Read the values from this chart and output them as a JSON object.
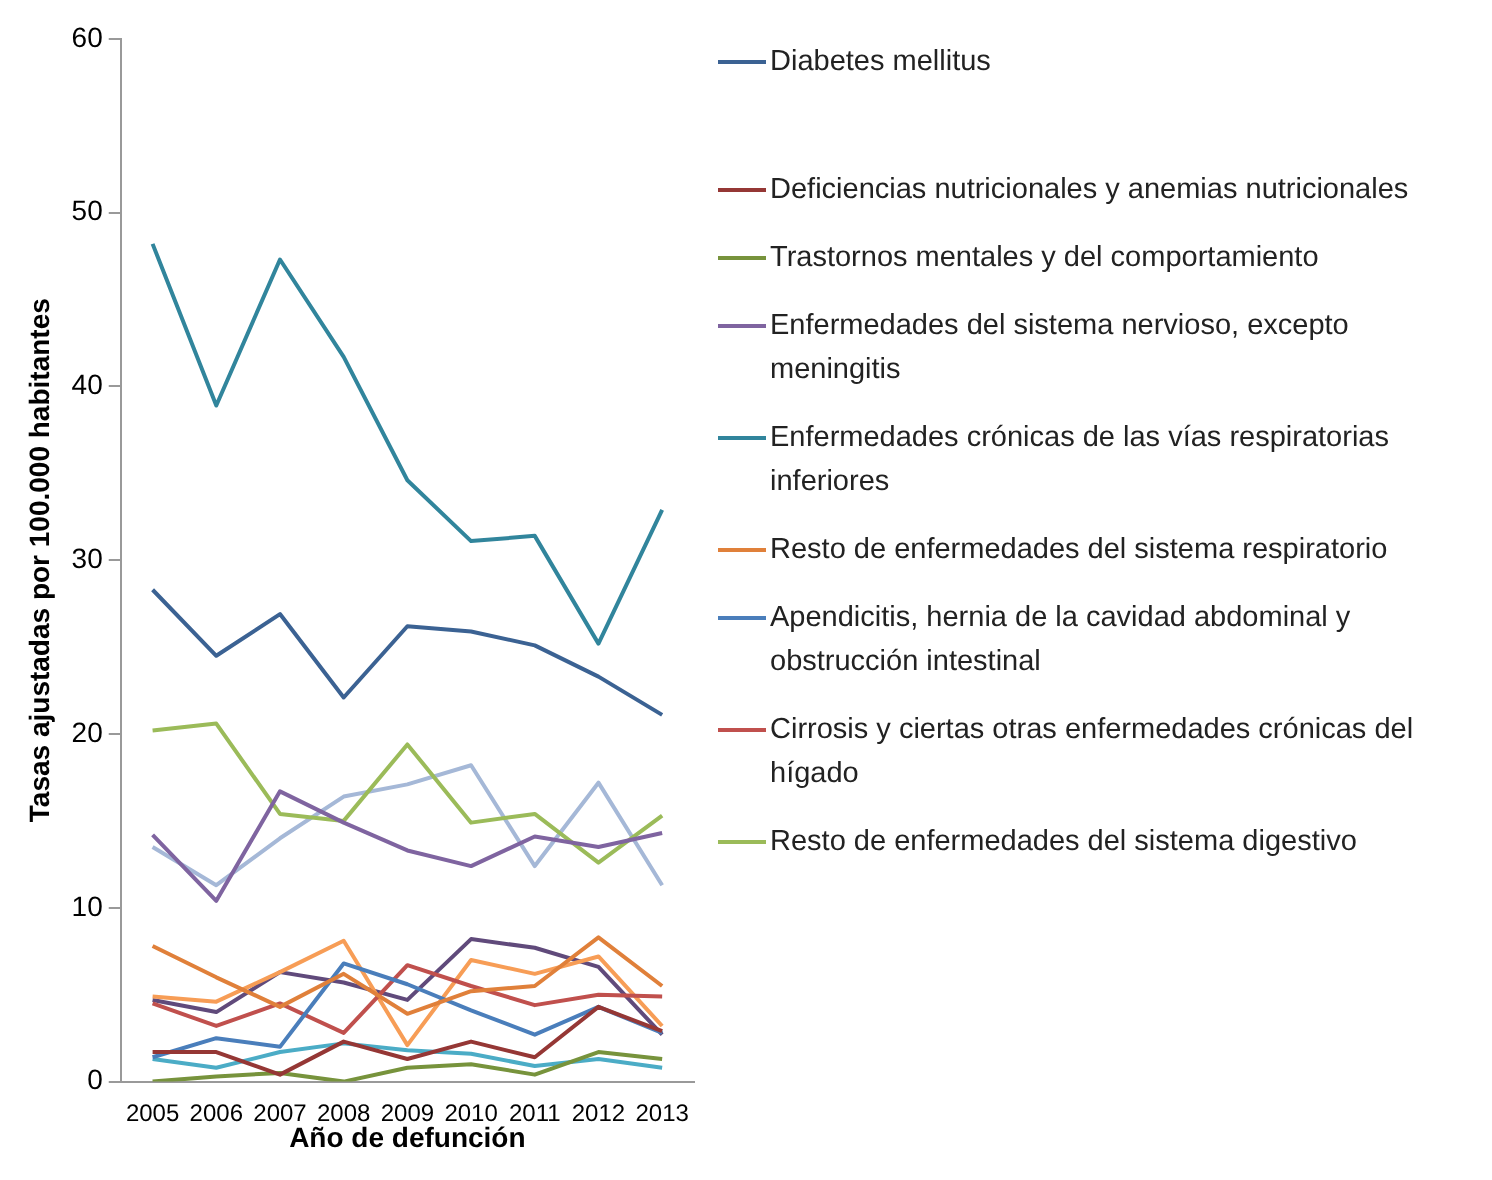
{
  "chart_data": {
    "type": "line",
    "xlabel": "Año de defunción",
    "ylabel": "Tasas ajustadas por 100.000 habitantes",
    "categories": [
      "2005",
      "2006",
      "2007",
      "2008",
      "2009",
      "2010",
      "2011",
      "2012",
      "2013"
    ],
    "ylim": [
      0,
      60
    ],
    "yticks": [
      0,
      10,
      20,
      30,
      40,
      50,
      60
    ],
    "grid": false,
    "legend": "right",
    "marker": "none",
    "series": [
      {
        "name": "Diabetes mellitus",
        "color": "#3b6293",
        "values": [
          28.3,
          24.5,
          26.9,
          22.1,
          26.2,
          25.9,
          25.1,
          23.3,
          21.1
        ]
      },
      {
        "name": "Deficiencias nutricionales y anemias nutricionales",
        "color": "#953735",
        "values": [
          1.7,
          1.7,
          0.4,
          2.3,
          1.3,
          2.3,
          1.4,
          4.3,
          2.9
        ]
      },
      {
        "name": "Trastornos mentales y del comportamiento",
        "color": "#77933c",
        "values": [
          0.0,
          0.3,
          0.5,
          0.0,
          0.8,
          1.0,
          0.4,
          1.7,
          1.3
        ]
      },
      {
        "name": "Enfermedades del sistema nervioso, excepto meningitis",
        "color": "#7f64a0",
        "values": [
          14.2,
          10.4,
          16.7,
          14.9,
          13.3,
          12.4,
          14.1,
          13.5,
          14.3
        ]
      },
      {
        "name": "Enfermedades crónicas de las vías respiratorias inferiores",
        "color": "#31859c",
        "values": [
          48.2,
          38.9,
          47.3,
          41.7,
          34.6,
          31.1,
          31.4,
          25.2,
          32.9
        ]
      },
      {
        "name": "Resto de enfermedades del sistema respiratorio",
        "color": "#e0803a",
        "values": [
          7.8,
          6.0,
          4.3,
          6.2,
          3.9,
          5.2,
          5.5,
          8.3,
          5.5
        ]
      },
      {
        "name": "Apendicitis, hernia de la cavidad abdominal y obstrucción intestinal",
        "color": "#4a7ebb",
        "values": [
          1.4,
          2.5,
          2.0,
          6.8,
          5.6,
          4.1,
          2.7,
          4.3,
          2.8
        ]
      },
      {
        "name": "Cirrosis y ciertas otras enfermedades crónicas del hígado",
        "color": "#c0504d",
        "values": [
          4.5,
          3.2,
          4.5,
          2.8,
          6.7,
          5.5,
          4.4,
          5.0,
          4.9
        ]
      },
      {
        "name": "Resto de enfermedades del sistema digestivo",
        "color": "#9bbb59",
        "values": [
          20.2,
          20.6,
          15.4,
          15.0,
          19.4,
          14.9,
          15.4,
          12.6,
          15.3
        ]
      },
      {
        "color": "#a5b8d7",
        "values": [
          13.5,
          11.3,
          14.0,
          16.4,
          17.1,
          18.2,
          12.4,
          17.2,
          11.3
        ]
      },
      {
        "color": "#f79d56",
        "values": [
          4.9,
          4.6,
          6.3,
          8.1,
          2.1,
          7.0,
          6.2,
          7.2,
          3.2
        ]
      },
      {
        "color": "#604a7b",
        "values": [
          4.7,
          4.0,
          6.3,
          5.7,
          4.7,
          8.2,
          7.7,
          6.6,
          2.7
        ]
      },
      {
        "color": "#4bacc6",
        "values": [
          1.3,
          0.8,
          1.7,
          2.2,
          1.8,
          1.6,
          0.9,
          1.3,
          0.8
        ]
      }
    ]
  }
}
